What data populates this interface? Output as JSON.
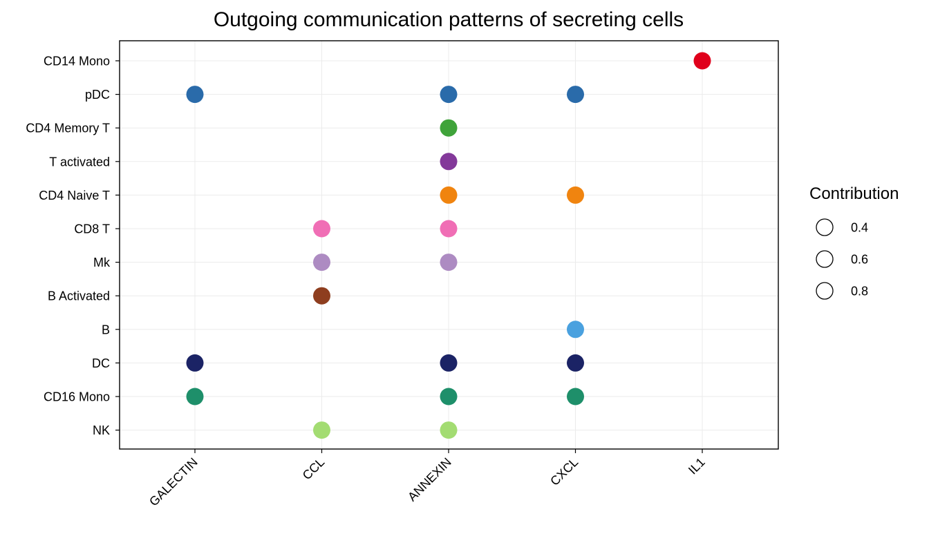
{
  "chart_data": {
    "type": "scatter",
    "title": "Outgoing communication patterns of secreting cells",
    "xlabel": "",
    "ylabel": "",
    "grid": true,
    "legend_position": "right",
    "x_categories": [
      "GALECTIN",
      "CCL",
      "ANNEXIN",
      "CXCL",
      "IL1"
    ],
    "y_categories": [
      "CD14 Mono",
      "pDC",
      "CD4 Memory T",
      "T activated",
      "CD4 Naive T",
      "CD8 T",
      "Mk",
      "B Activated",
      "B",
      "DC",
      "CD16 Mono",
      "NK"
    ],
    "cell_colors": {
      "CD14 Mono": "#E0001B",
      "pDC": "#2A6BAA",
      "CD4 Memory T": "#3FA33A",
      "T activated": "#83399A",
      "CD4 Naive T": "#F0840F",
      "CD8 T": "#F06EB5",
      "Mk": "#AD8BC2",
      "B Activated": "#8E3E1F",
      "B": "#4AA1DF",
      "DC": "#1B2365",
      "CD16 Mono": "#1E8F6A",
      "NK": "#A3DC72"
    },
    "points": [
      {
        "cell": "CD14 Mono",
        "pattern": "IL1"
      },
      {
        "cell": "pDC",
        "pattern": "GALECTIN"
      },
      {
        "cell": "pDC",
        "pattern": "ANNEXIN"
      },
      {
        "cell": "pDC",
        "pattern": "CXCL"
      },
      {
        "cell": "CD4 Memory T",
        "pattern": "ANNEXIN"
      },
      {
        "cell": "T activated",
        "pattern": "ANNEXIN"
      },
      {
        "cell": "CD4 Naive T",
        "pattern": "ANNEXIN"
      },
      {
        "cell": "CD4 Naive T",
        "pattern": "CXCL"
      },
      {
        "cell": "CD8 T",
        "pattern": "CCL"
      },
      {
        "cell": "CD8 T",
        "pattern": "ANNEXIN"
      },
      {
        "cell": "Mk",
        "pattern": "CCL"
      },
      {
        "cell": "Mk",
        "pattern": "ANNEXIN"
      },
      {
        "cell": "B Activated",
        "pattern": "CCL"
      },
      {
        "cell": "B",
        "pattern": "CXCL"
      },
      {
        "cell": "DC",
        "pattern": "GALECTIN"
      },
      {
        "cell": "DC",
        "pattern": "ANNEXIN"
      },
      {
        "cell": "DC",
        "pattern": "CXCL"
      },
      {
        "cell": "CD16 Mono",
        "pattern": "GALECTIN"
      },
      {
        "cell": "CD16 Mono",
        "pattern": "ANNEXIN"
      },
      {
        "cell": "CD16 Mono",
        "pattern": "CXCL"
      },
      {
        "cell": "NK",
        "pattern": "CCL"
      },
      {
        "cell": "NK",
        "pattern": "ANNEXIN"
      }
    ],
    "legend": {
      "title": "Contribution",
      "labels": [
        "0.4",
        "0.6",
        "0.8"
      ]
    }
  }
}
